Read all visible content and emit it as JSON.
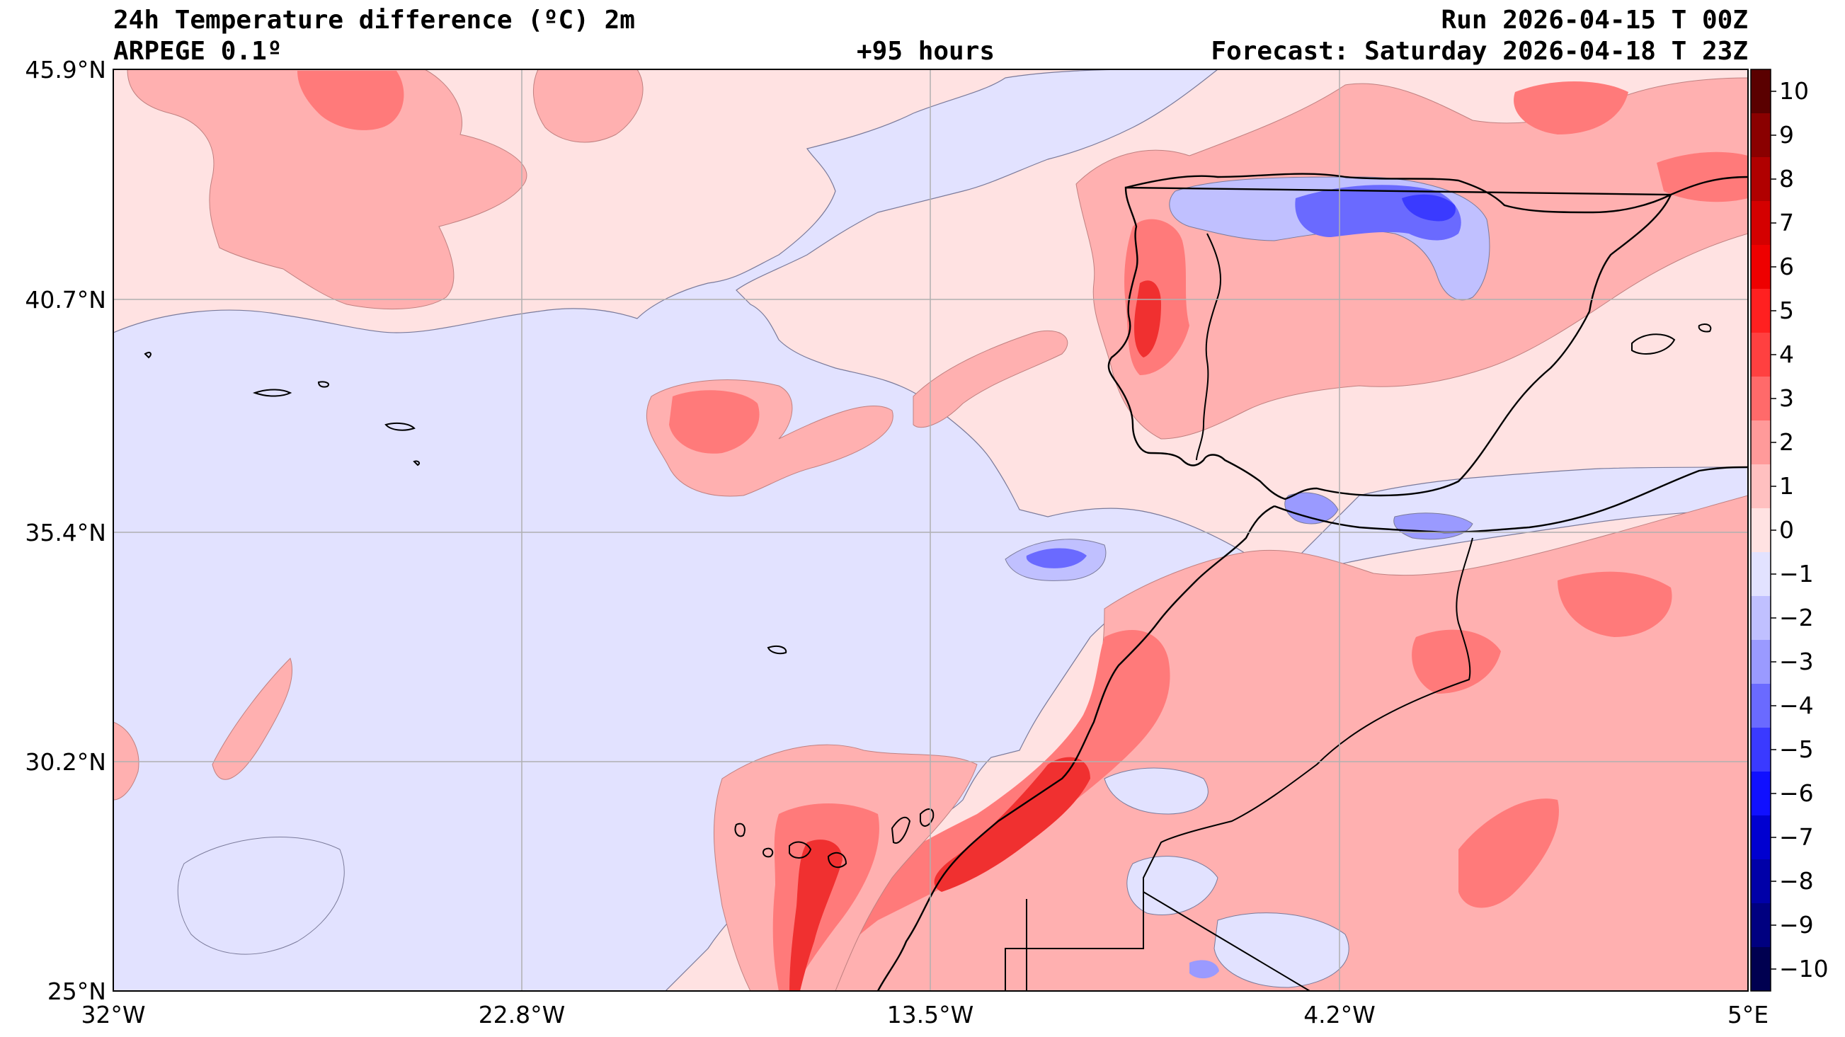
{
  "header": {
    "title": "24h Temperature difference (ºC) 2m",
    "model": "ARPEGE 0.1º",
    "lead": "+95 hours",
    "run": "Run 2026-04-15 T 00Z",
    "forecast": "Forecast: Saturday 2026-04-18 T 23Z"
  },
  "axes": {
    "lat_ticks": [
      "45.9°N",
      "40.7°N",
      "35.4°N",
      "30.2°N",
      "25°N"
    ],
    "lon_ticks": [
      "32°W",
      "22.8°W",
      "13.5°W",
      "4.2°W",
      "5°E"
    ],
    "extent": {
      "lon": [
        -32,
        5
      ],
      "lat": [
        25,
        45.9
      ]
    },
    "grid": true
  },
  "colorbar": {
    "levels": [
      10,
      9,
      8,
      7,
      6,
      5,
      4,
      3,
      2,
      1,
      0,
      -1,
      -2,
      -3,
      -4,
      -5,
      -6,
      -7,
      -8,
      -9,
      -10
    ],
    "labels": [
      "10",
      "9",
      "8",
      "7",
      "6",
      "5",
      "4",
      "3",
      "2",
      "1",
      "0",
      "−1",
      "−2",
      "−3",
      "−4",
      "−5",
      "−6",
      "−7",
      "−8",
      "−9",
      "−10"
    ],
    "colors": [
      "#5a0000",
      "#8a0000",
      "#b00000",
      "#d40000",
      "#ee0000",
      "#ff2020",
      "#ff4040",
      "#ff6a6a",
      "#ff9a9a",
      "#ffc0c0",
      "#ffe2e2",
      "#e2e2ff",
      "#c0c0ff",
      "#9a9aff",
      "#6a6aff",
      "#3a3aff",
      "#1010ff",
      "#0000d0",
      "#0000a8",
      "#000080",
      "#000050"
    ]
  },
  "style": {
    "warm_light": "#ffe2e2",
    "warm": "#ffb0b0",
    "warm_mid": "#ff7a7a",
    "warm_strong": "#f03030",
    "cool_light": "#e2e2ff",
    "cool_mid": "#9a9aff",
    "cool_strong": "#4040f0"
  }
}
